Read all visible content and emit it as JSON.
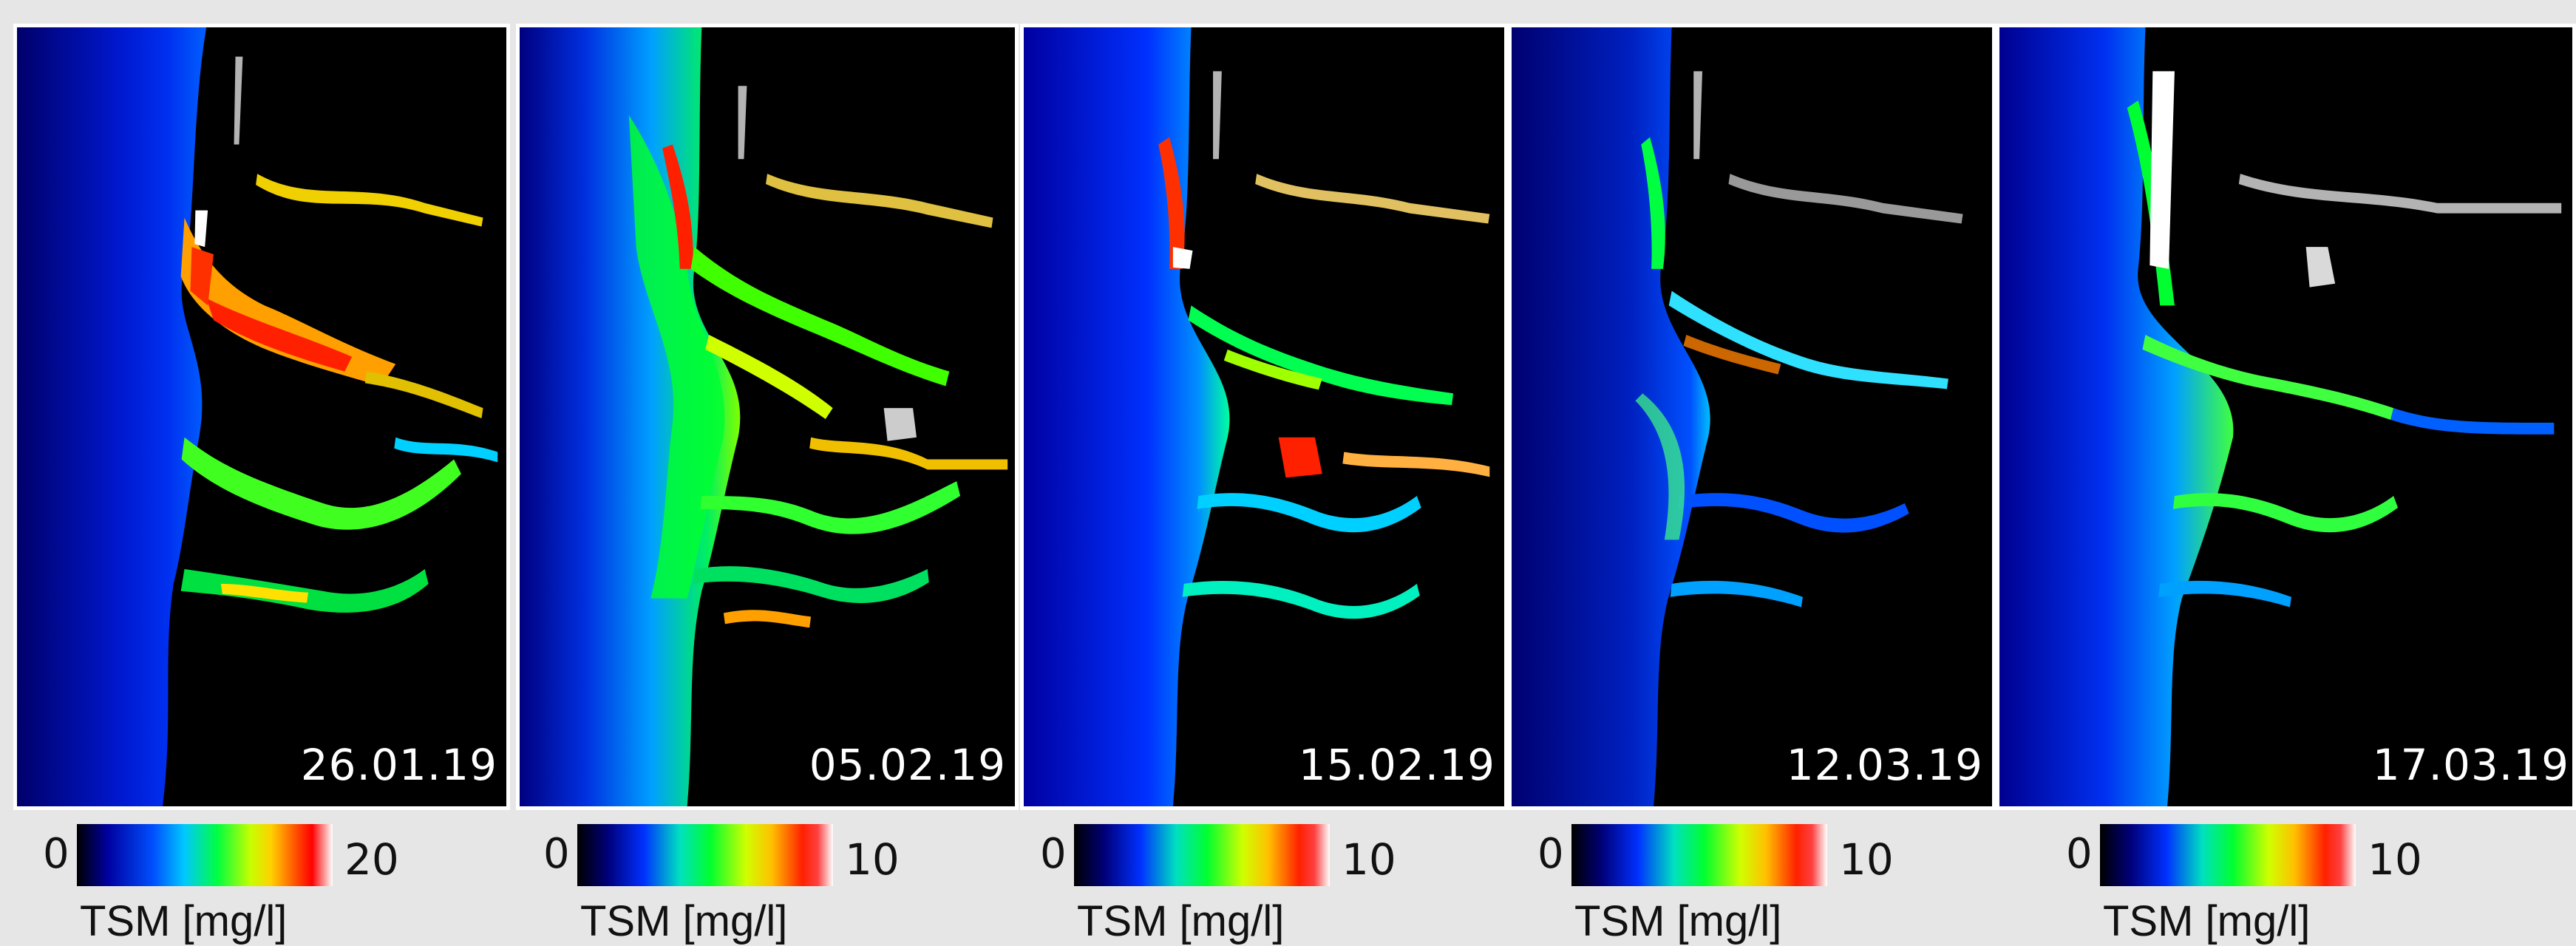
{
  "panels": [
    {
      "date": "26.01.19",
      "legend_min": "0",
      "legend_max": "20",
      "unit": "TSM [mg/l]"
    },
    {
      "date": "05.02.19",
      "legend_min": "0",
      "legend_max": "10",
      "unit": "TSM [mg/l]"
    },
    {
      "date": "15.02.19",
      "legend_min": "0",
      "legend_max": "10",
      "unit": "TSM [mg/l]"
    },
    {
      "date": "12.03.19",
      "legend_min": "0",
      "legend_max": "10",
      "unit": "TSM [mg/l]"
    },
    {
      "date": "17.03.19",
      "legend_min": "0",
      "legend_max": "10",
      "unit": "TSM [mg/l]"
    }
  ],
  "colors": {
    "background": "#e6e6e6",
    "land": "#000000",
    "frame_border": "#ffffff",
    "low_tsm": "#0000c0",
    "mid_tsm": "#00ff40",
    "high_tsm": "#ff0000"
  },
  "colorbar": [
    "#000000",
    "#0000a0",
    "#0050ff",
    "#00ff40",
    "#ffd000",
    "#ff0000",
    "#ffffff"
  ]
}
